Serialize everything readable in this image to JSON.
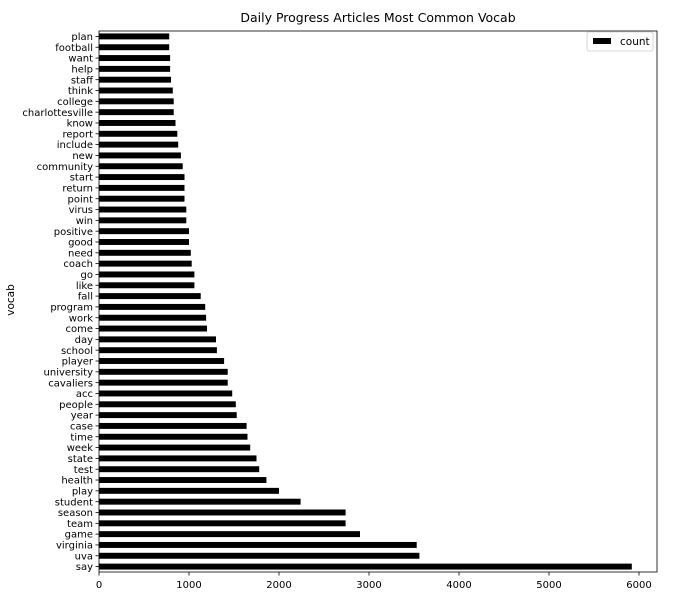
{
  "chart_data": {
    "type": "bar",
    "orientation": "horizontal",
    "title": "Daily Progress Articles Most Common Vocab",
    "xlabel": "",
    "ylabel": "vocab",
    "xlim": [
      0,
      6200
    ],
    "xticks": [
      0,
      1000,
      2000,
      3000,
      4000,
      5000,
      6000
    ],
    "grid": false,
    "legend_placement": "top-right",
    "bar_color": "#000000",
    "series": [
      {
        "name": "count",
        "categories": [
          "say",
          "uva",
          "virginia",
          "game",
          "team",
          "season",
          "student",
          "play",
          "health",
          "test",
          "state",
          "week",
          "time",
          "case",
          "year",
          "people",
          "acc",
          "cavaliers",
          "university",
          "player",
          "school",
          "day",
          "come",
          "work",
          "program",
          "fall",
          "like",
          "go",
          "coach",
          "need",
          "good",
          "positive",
          "win",
          "virus",
          "point",
          "return",
          "start",
          "community",
          "new",
          "include",
          "report",
          "know",
          "charlottesville",
          "college",
          "think",
          "staff",
          "help",
          "want",
          "football",
          "plan"
        ],
        "values": [
          5920,
          3560,
          3530,
          2900,
          2740,
          2740,
          2240,
          2000,
          1860,
          1780,
          1750,
          1680,
          1650,
          1640,
          1530,
          1520,
          1480,
          1430,
          1430,
          1390,
          1310,
          1300,
          1200,
          1190,
          1180,
          1130,
          1060,
          1060,
          1030,
          1020,
          1000,
          1000,
          970,
          970,
          950,
          950,
          950,
          930,
          910,
          880,
          870,
          850,
          830,
          830,
          820,
          800,
          790,
          790,
          780,
          780
        ]
      }
    ]
  }
}
